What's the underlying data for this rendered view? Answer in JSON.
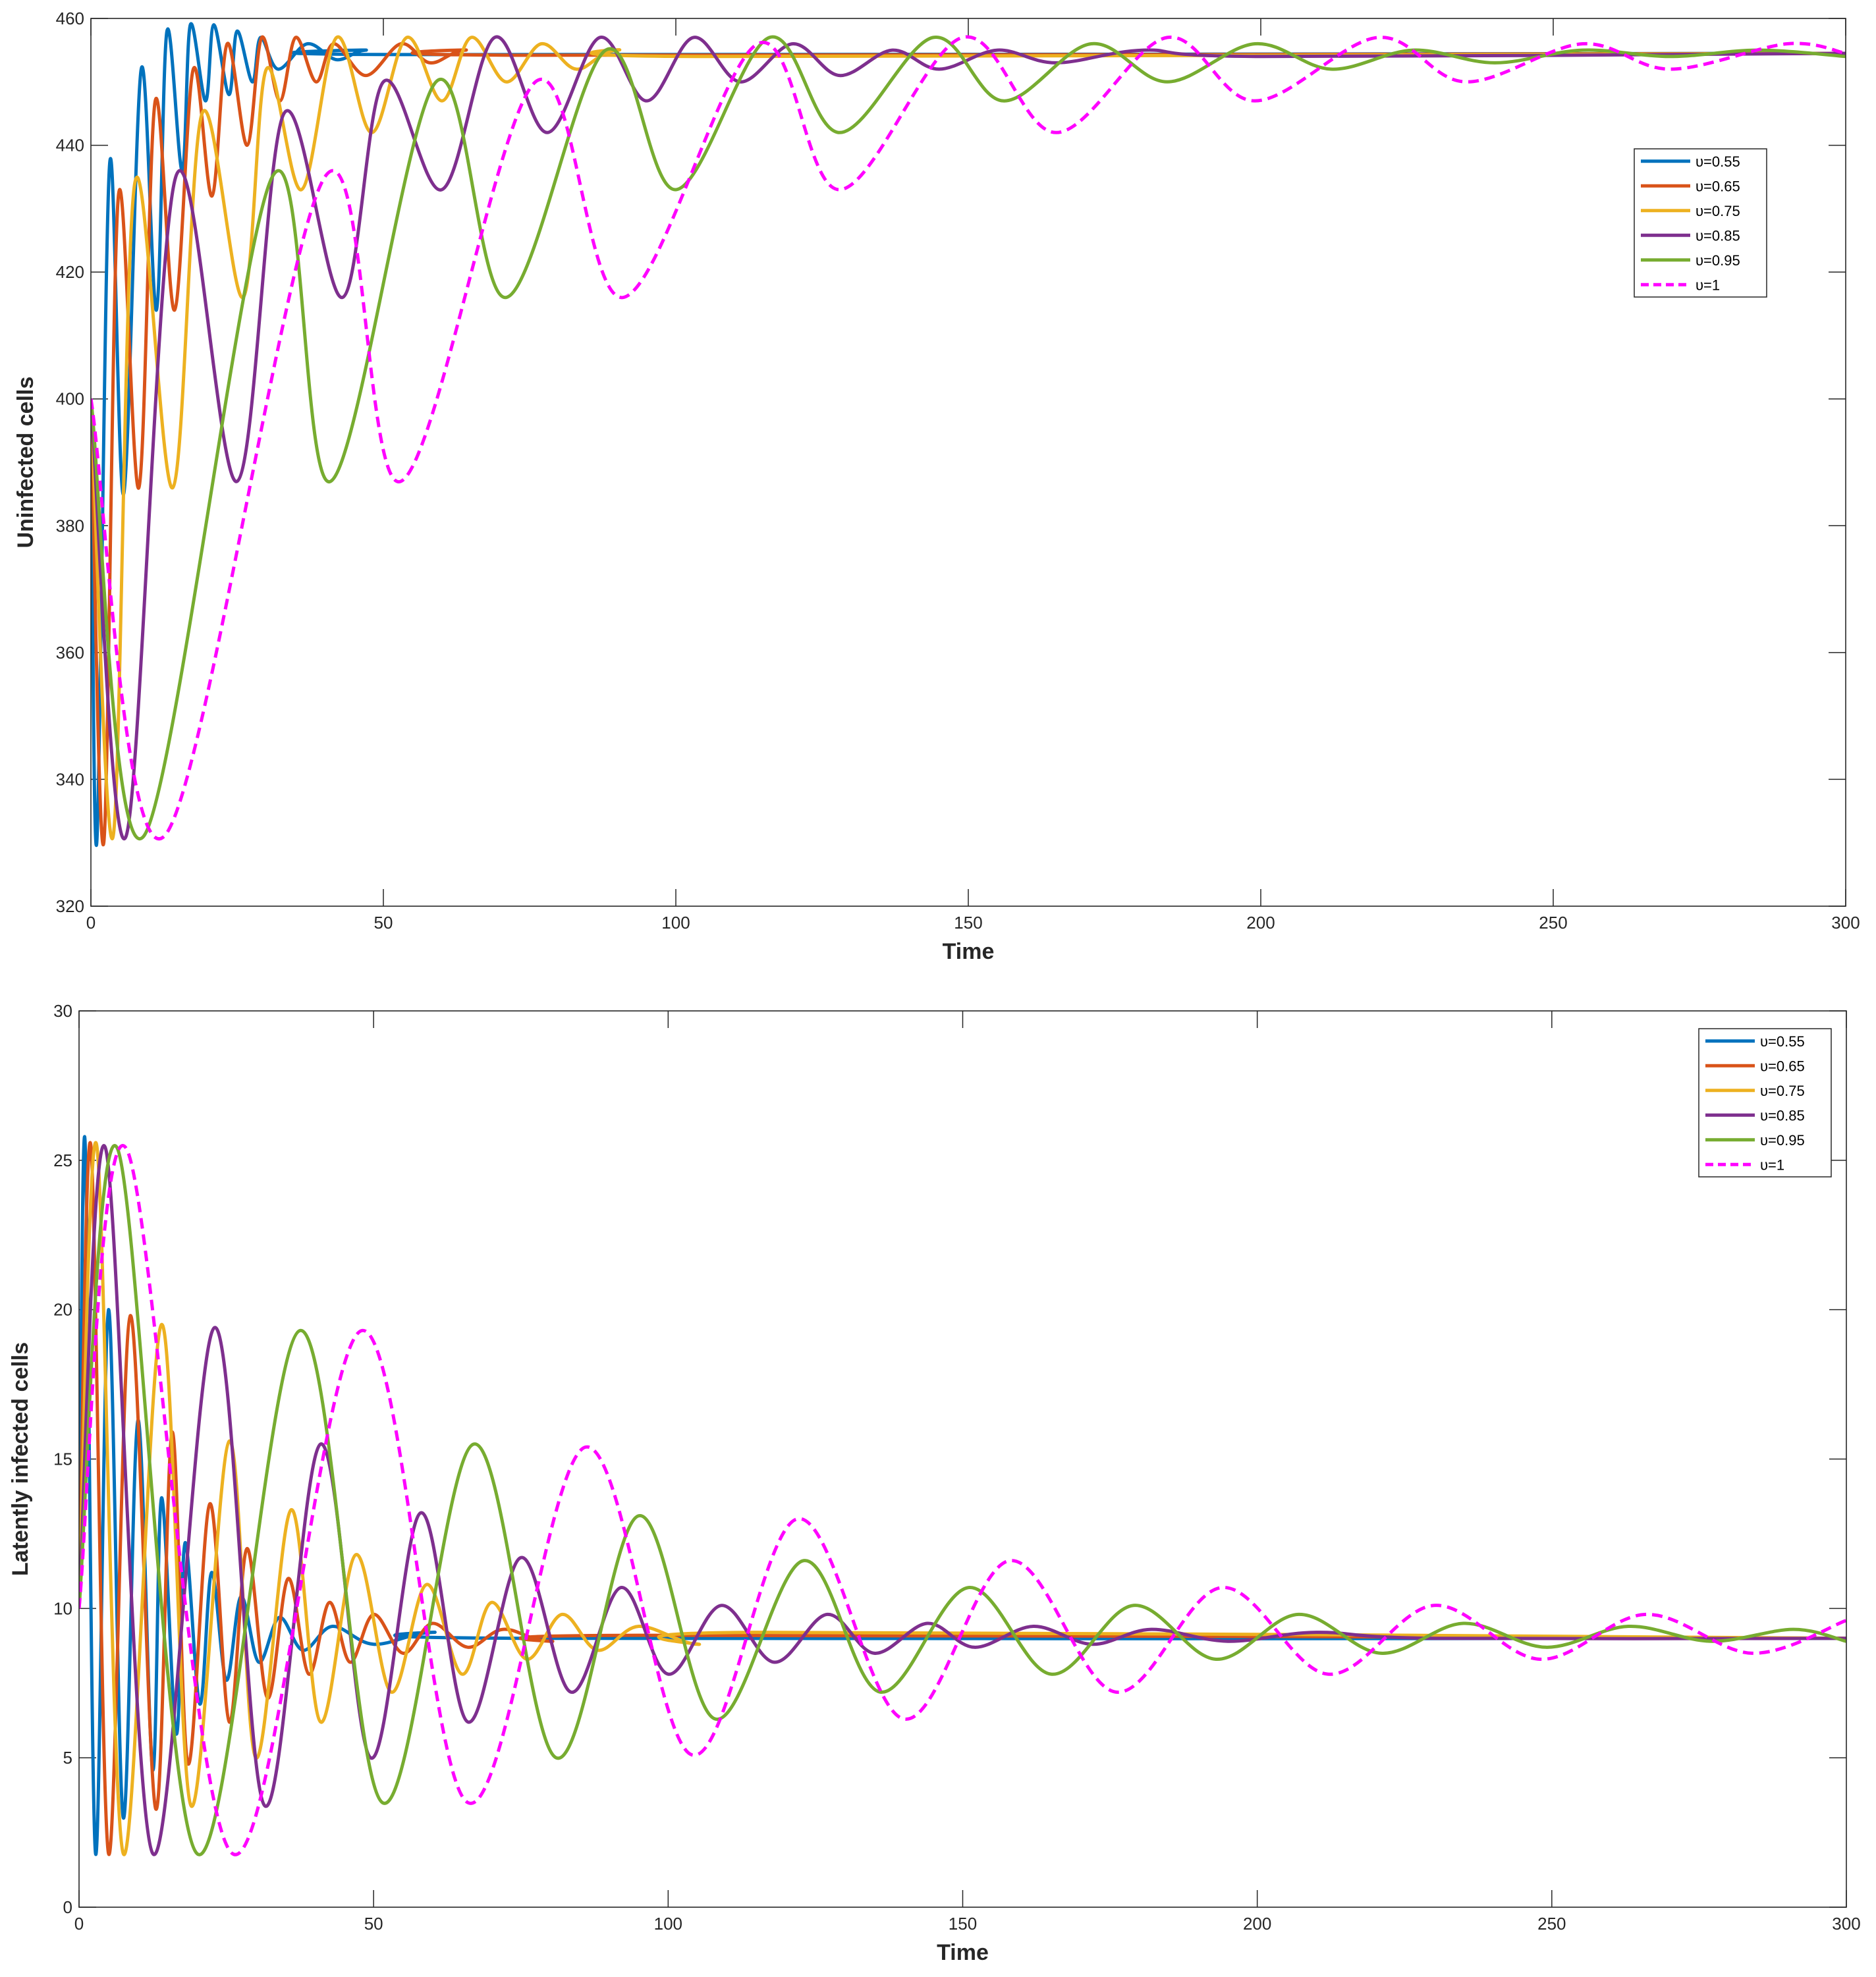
{
  "chart_data": [
    {
      "type": "line",
      "xlabel": "Time",
      "ylabel": "Uninfected cells",
      "xlim": [
        0,
        300
      ],
      "ylim": [
        320,
        460
      ],
      "xticks": [
        0,
        50,
        100,
        150,
        200,
        250,
        300
      ],
      "yticks": [
        320,
        340,
        360,
        380,
        400,
        420,
        440,
        460
      ],
      "grid": false,
      "legend_position": "right",
      "series": [
        {
          "name": "υ=0.55",
          "color": "#0072BD",
          "style": "solid",
          "points": [
            [
              0,
              400
            ],
            [
              1.0,
              330
            ],
            [
              3.2,
              437
            ],
            [
              5.6,
              385
            ],
            [
              8.6,
              452
            ],
            [
              11.2,
              414
            ],
            [
              13.0,
              458
            ],
            [
              15.6,
              436
            ],
            [
              17.0,
              459
            ],
            [
              19.6,
              447
            ],
            [
              21.0,
              459
            ],
            [
              23.6,
              448
            ],
            [
              25.0,
              458
            ],
            [
              27.6,
              450
            ],
            [
              29.0,
              457
            ],
            [
              32.0,
              452
            ],
            [
              37.0,
              456
            ],
            [
              42.0,
              453.5
            ],
            [
              47.0,
              455
            ],
            [
              55.0,
              454.3
            ],
            [
              300,
              454.5
            ]
          ]
        },
        {
          "name": "υ=0.65",
          "color": "#D95319",
          "style": "solid",
          "points": [
            [
              0,
              400
            ],
            [
              2.2,
              330
            ],
            [
              4.7,
              432
            ],
            [
              8.2,
              386
            ],
            [
              11.0,
              447
            ],
            [
              14.3,
              414
            ],
            [
              17.5,
              452
            ],
            [
              20.7,
              432
            ],
            [
              23.3,
              456
            ],
            [
              26.7,
              440
            ],
            [
              29.2,
              457
            ],
            [
              32.3,
              447
            ],
            [
              35.0,
              457
            ],
            [
              38.5,
              450
            ],
            [
              41.5,
              456
            ],
            [
              47.0,
              451
            ],
            [
              53.0,
              456
            ],
            [
              58.0,
              453
            ],
            [
              64.0,
              455
            ],
            [
              75.0,
              454.2
            ],
            [
              300,
              454.5
            ]
          ]
        },
        {
          "name": "υ=0.75",
          "color": "#EDB120",
          "style": "solid",
          "points": [
            [
              0,
              400
            ],
            [
              3.8,
              331
            ],
            [
              7.5,
              434
            ],
            [
              14.0,
              386
            ],
            [
              19.0,
              445
            ],
            [
              26.0,
              416
            ],
            [
              30.0,
              452
            ],
            [
              36.0,
              433
            ],
            [
              42.0,
              457
            ],
            [
              48.0,
              442
            ],
            [
              54.0,
              457
            ],
            [
              60.0,
              447
            ],
            [
              65.0,
              457
            ],
            [
              71.0,
              450
            ],
            [
              77.0,
              456
            ],
            [
              83.0,
              452
            ],
            [
              90.0,
              455
            ],
            [
              105,
              454
            ],
            [
              300,
              454.5
            ]
          ]
        },
        {
          "name": "υ=0.85",
          "color": "#7E2F8E",
          "style": "solid",
          "points": [
            [
              0,
              400
            ],
            [
              6.0,
              331
            ],
            [
              14.5,
              435
            ],
            [
              25.0,
              387
            ],
            [
              33.0,
              445
            ],
            [
              43.0,
              416
            ],
            [
              50.0,
              450
            ],
            [
              60.0,
              433
            ],
            [
              69.0,
              457
            ],
            [
              78.0,
              442
            ],
            [
              87.0,
              457
            ],
            [
              95.0,
              447
            ],
            [
              103,
              457
            ],
            [
              111,
              450
            ],
            [
              120,
              456
            ],
            [
              128,
              451
            ],
            [
              137,
              455
            ],
            [
              145,
              452
            ],
            [
              155,
              455
            ],
            [
              165,
              453
            ],
            [
              180,
              455
            ],
            [
              200,
              454
            ],
            [
              300,
              454.5
            ]
          ]
        },
        {
          "name": "υ=0.95",
          "color": "#77AC30",
          "style": "solid",
          "points": [
            [
              0,
              400
            ],
            [
              9.0,
              331
            ],
            [
              31.0,
              435
            ],
            [
              41.0,
              387
            ],
            [
              59.0,
              450
            ],
            [
              71.0,
              416
            ],
            [
              88.0,
              455
            ],
            [
              100,
              433
            ],
            [
              116,
              457
            ],
            [
              128,
              442
            ],
            [
              144,
              457
            ],
            [
              156,
              447
            ],
            [
              171,
              456
            ],
            [
              184,
              450
            ],
            [
              199,
              456
            ],
            [
              212,
              452
            ],
            [
              226,
              455
            ],
            [
              240,
              453
            ],
            [
              255,
              455
            ],
            [
              270,
              454
            ],
            [
              285,
              455
            ],
            [
              300,
              454
            ]
          ]
        },
        {
          "name": "υ=1",
          "color": "#FF00FF",
          "style": "dashed",
          "points": [
            [
              0,
              400
            ],
            [
              12.5,
              331
            ],
            [
              40.0,
              435
            ],
            [
              53.0,
              387
            ],
            [
              76.0,
              450
            ],
            [
              91.0,
              416
            ],
            [
              114,
              456
            ],
            [
              128,
              433
            ],
            [
              149,
              457
            ],
            [
              165,
              442
            ],
            [
              184,
              457
            ],
            [
              199,
              447
            ],
            [
              220,
              457
            ],
            [
              235,
              450
            ],
            [
              255,
              456
            ],
            [
              270,
              452
            ],
            [
              290,
              456
            ],
            [
              300,
              454.5
            ]
          ]
        }
      ]
    },
    {
      "type": "line",
      "xlabel": "Time",
      "ylabel": "Latently infected cells",
      "xlim": [
        0,
        300
      ],
      "ylim": [
        0,
        30
      ],
      "xticks": [
        0,
        50,
        100,
        150,
        200,
        250,
        300
      ],
      "yticks": [
        0,
        5,
        10,
        15,
        20,
        25,
        30
      ],
      "grid": false,
      "legend_position": "top-right",
      "series": [
        {
          "name": "υ=0.55",
          "color": "#0072BD",
          "style": "solid",
          "points": [
            [
              0,
              10
            ],
            [
              1.0,
              25.7
            ],
            [
              2.8,
              1.8
            ],
            [
              5.0,
              20.0
            ],
            [
              7.5,
              3.0
            ],
            [
              10.0,
              16.3
            ],
            [
              12.5,
              4.6
            ],
            [
              14.0,
              13.7
            ],
            [
              16.5,
              5.8
            ],
            [
              18.0,
              12.2
            ],
            [
              20.5,
              6.8
            ],
            [
              22.5,
              11.2
            ],
            [
              25.0,
              7.6
            ],
            [
              27.5,
              10.4
            ],
            [
              30.5,
              8.2
            ],
            [
              34.0,
              9.7
            ],
            [
              38.0,
              8.6
            ],
            [
              43.0,
              9.4
            ],
            [
              50.0,
              8.8
            ],
            [
              60.0,
              9.2
            ],
            [
              75.0,
              9.0
            ],
            [
              300,
              9.0
            ]
          ]
        },
        {
          "name": "υ=0.65",
          "color": "#D95319",
          "style": "solid",
          "points": [
            [
              0,
              10
            ],
            [
              2.0,
              25.5
            ],
            [
              5.0,
              1.8
            ],
            [
              8.7,
              19.8
            ],
            [
              13.0,
              3.3
            ],
            [
              15.8,
              15.9
            ],
            [
              18.5,
              4.8
            ],
            [
              22.2,
              13.5
            ],
            [
              25.5,
              6.2
            ],
            [
              28.5,
              12.0
            ],
            [
              32.0,
              7.0
            ],
            [
              35.5,
              11.0
            ],
            [
              39.0,
              7.8
            ],
            [
              42.5,
              10.2
            ],
            [
              46.0,
              8.2
            ],
            [
              50.0,
              9.8
            ],
            [
              55.0,
              8.5
            ],
            [
              60.0,
              9.5
            ],
            [
              66.0,
              8.7
            ],
            [
              72.0,
              9.3
            ],
            [
              80.0,
              8.9
            ],
            [
              95.0,
              9.1
            ],
            [
              300,
              9.0
            ]
          ]
        },
        {
          "name": "υ=0.75",
          "color": "#EDB120",
          "style": "solid",
          "points": [
            [
              0,
              10
            ],
            [
              3.0,
              25.5
            ],
            [
              7.5,
              1.8
            ],
            [
              14.0,
              19.5
            ],
            [
              19.0,
              3.4
            ],
            [
              25.5,
              15.6
            ],
            [
              30.0,
              5.0
            ],
            [
              36.0,
              13.3
            ],
            [
              41.0,
              6.2
            ],
            [
              47.0,
              11.8
            ],
            [
              53.0,
              7.2
            ],
            [
              59.0,
              10.8
            ],
            [
              65.0,
              7.8
            ],
            [
              70.0,
              10.2
            ],
            [
              76.0,
              8.3
            ],
            [
              82.0,
              9.8
            ],
            [
              88.0,
              8.6
            ],
            [
              95.0,
              9.4
            ],
            [
              105,
              8.8
            ],
            [
              115,
              9.2
            ],
            [
              300,
              9.0
            ]
          ]
        },
        {
          "name": "υ=0.85",
          "color": "#7E2F8E",
          "style": "solid",
          "points": [
            [
              0,
              10
            ],
            [
              4.5,
              25.4
            ],
            [
              12.5,
              1.8
            ],
            [
              23.0,
              19.4
            ],
            [
              31.5,
              3.4
            ],
            [
              41.0,
              15.5
            ],
            [
              49.5,
              5.0
            ],
            [
              58.0,
              13.2
            ],
            [
              66.0,
              6.2
            ],
            [
              75.0,
              11.7
            ],
            [
              83.5,
              7.2
            ],
            [
              92.0,
              10.7
            ],
            [
              100,
              7.8
            ],
            [
              109,
              10.1
            ],
            [
              118,
              8.2
            ],
            [
              127,
              9.8
            ],
            [
              135,
              8.5
            ],
            [
              144,
              9.5
            ],
            [
              152,
              8.7
            ],
            [
              162,
              9.4
            ],
            [
              172,
              8.8
            ],
            [
              182,
              9.3
            ],
            [
              195,
              8.9
            ],
            [
              210,
              9.2
            ],
            [
              230,
              9.0
            ],
            [
              300,
              9.0
            ]
          ]
        },
        {
          "name": "υ=0.95",
          "color": "#77AC30",
          "style": "solid",
          "points": [
            [
              0,
              10
            ],
            [
              6.5,
              25.4
            ],
            [
              20.0,
              1.8
            ],
            [
              37.5,
              19.3
            ],
            [
              51.5,
              3.5
            ],
            [
              67.0,
              15.5
            ],
            [
              81.0,
              5.0
            ],
            [
              95.0,
              13.1
            ],
            [
              108,
              6.3
            ],
            [
              123,
              11.6
            ],
            [
              136,
              7.2
            ],
            [
              151,
              10.7
            ],
            [
              165,
              7.8
            ],
            [
              179,
              10.1
            ],
            [
              193,
              8.3
            ],
            [
              207,
              9.8
            ],
            [
              221,
              8.5
            ],
            [
              235,
              9.5
            ],
            [
              249,
              8.7
            ],
            [
              263,
              9.4
            ],
            [
              277,
              8.9
            ],
            [
              291,
              9.3
            ],
            [
              300,
              8.9
            ]
          ]
        },
        {
          "name": "υ=1",
          "color": "#FF00FF",
          "style": "dashed",
          "points": [
            [
              0,
              10
            ],
            [
              8.0,
              25.4
            ],
            [
              26.0,
              1.8
            ],
            [
              48.0,
              19.3
            ],
            [
              66.0,
              3.5
            ],
            [
              86.0,
              15.4
            ],
            [
              104,
              5.1
            ],
            [
              122,
              13.0
            ],
            [
              140,
              6.3
            ],
            [
              158,
              11.6
            ],
            [
              176,
              7.2
            ],
            [
              194,
              10.7
            ],
            [
              212,
              7.8
            ],
            [
              230,
              10.1
            ],
            [
              248,
              8.3
            ],
            [
              266,
              9.8
            ],
            [
              284,
              8.5
            ],
            [
              300,
              9.6
            ]
          ]
        }
      ]
    }
  ]
}
